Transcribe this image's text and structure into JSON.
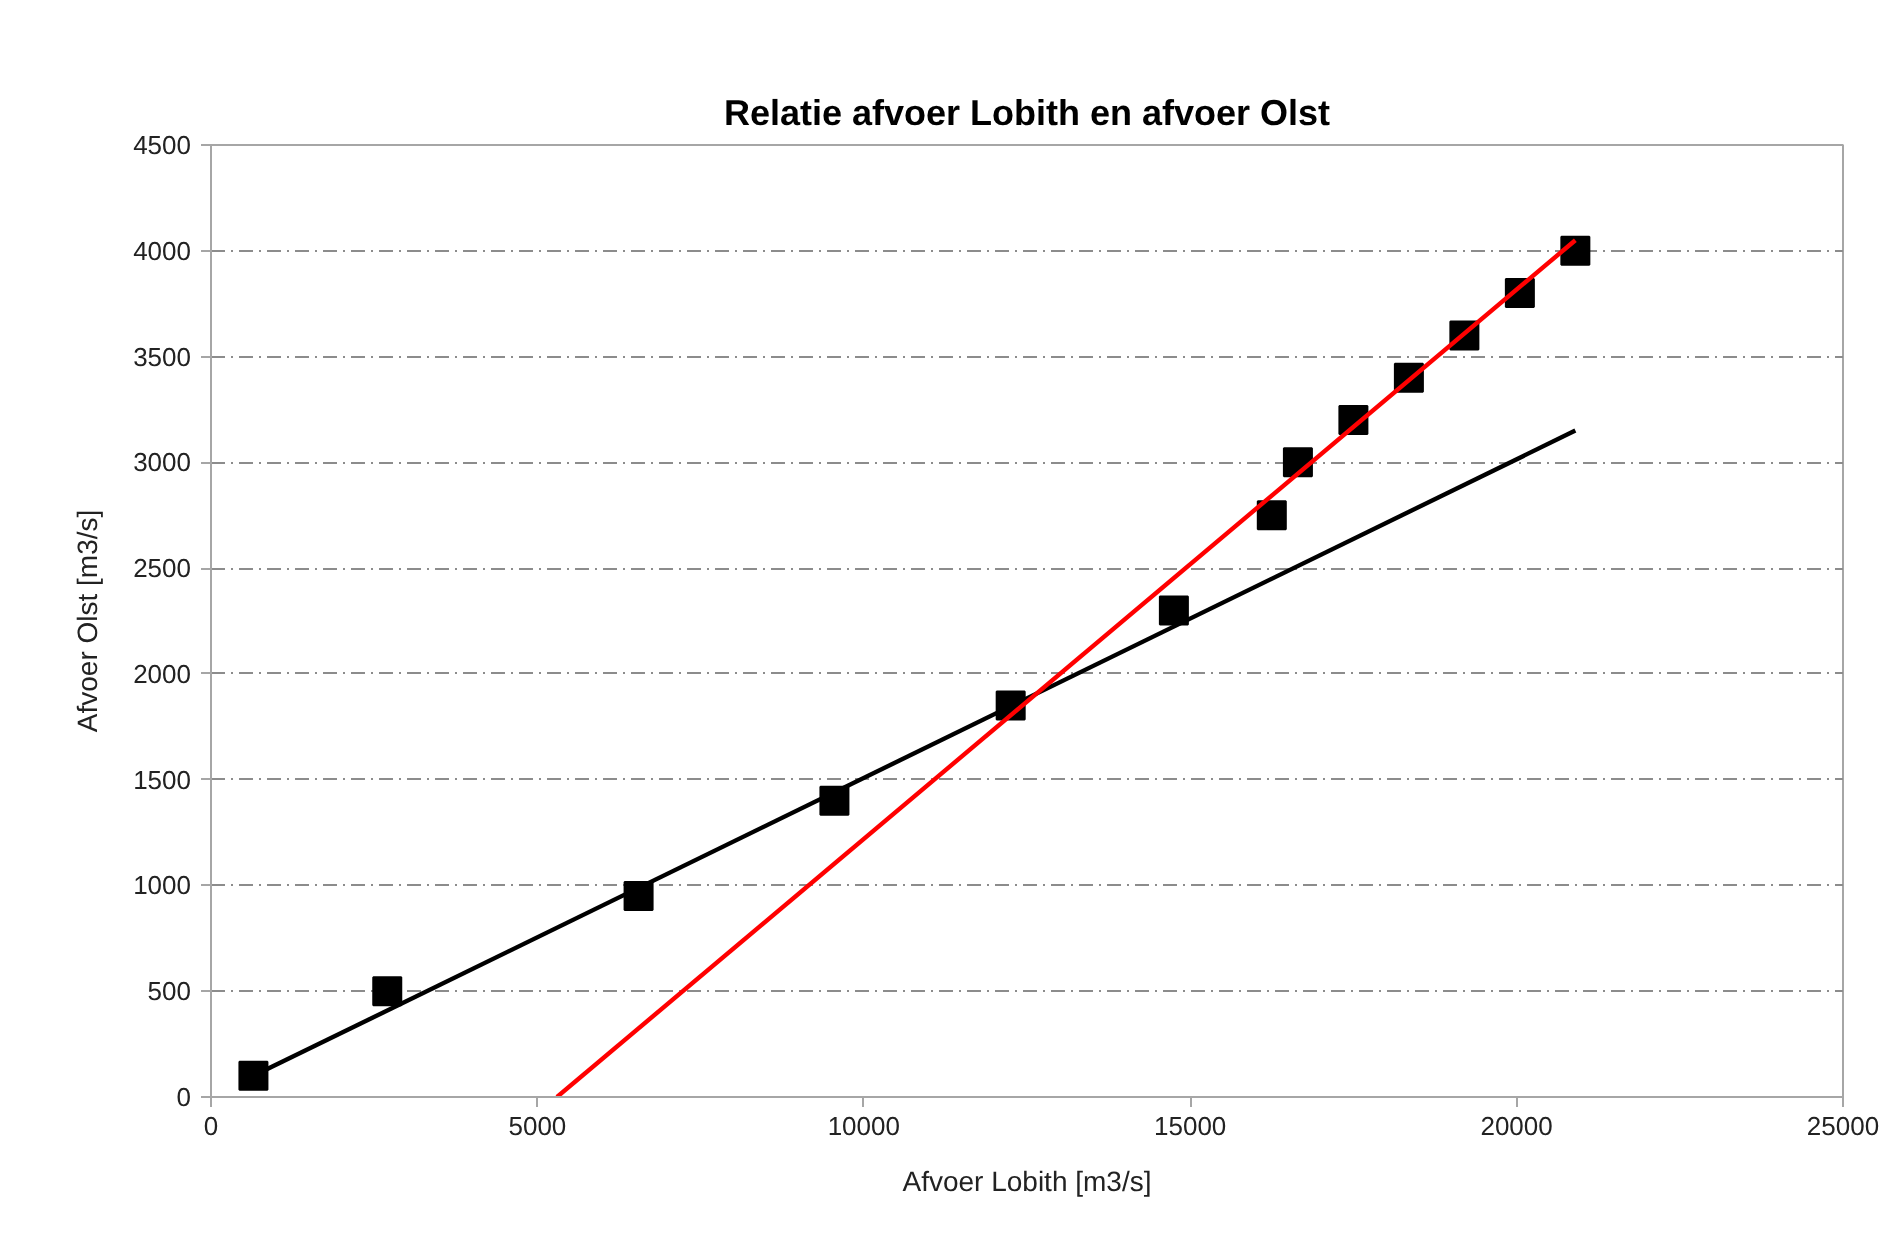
{
  "chart_data": {
    "type": "scatter",
    "title": "Relatie afvoer Lobith en afvoer Olst",
    "xlabel": "Afvoer Lobith [m3/s]",
    "ylabel": "Afvoer Olst [m3/s]",
    "xlim": [
      0,
      25000
    ],
    "ylim": [
      0,
      4500
    ],
    "xticks": [
      0,
      5000,
      10000,
      15000,
      20000,
      25000
    ],
    "yticks": [
      0,
      500,
      1000,
      1500,
      2000,
      2500,
      3000,
      3500,
      4000,
      4500
    ],
    "grid": "y",
    "series": [
      {
        "color": "#000000",
        "marker": "square",
        "x": [
          650,
          2700,
          6550,
          9550,
          12250,
          14750,
          16250,
          16650,
          17500,
          18350,
          19200,
          20050,
          20900
        ],
        "values": [
          100,
          500,
          950,
          1400,
          1850,
          2300,
          2750,
          3000,
          3200,
          3400,
          3600,
          3800,
          4000
        ]
      },
      {
        "type": "line",
        "color": "#000000",
        "marker": "none",
        "x": [
          650,
          20900
        ],
        "values": [
          100,
          3150
        ]
      },
      {
        "type": "line",
        "color": "#ff0000",
        "marker": "none",
        "x": [
          5300,
          20900
        ],
        "values": [
          0,
          4050
        ]
      }
    ]
  }
}
